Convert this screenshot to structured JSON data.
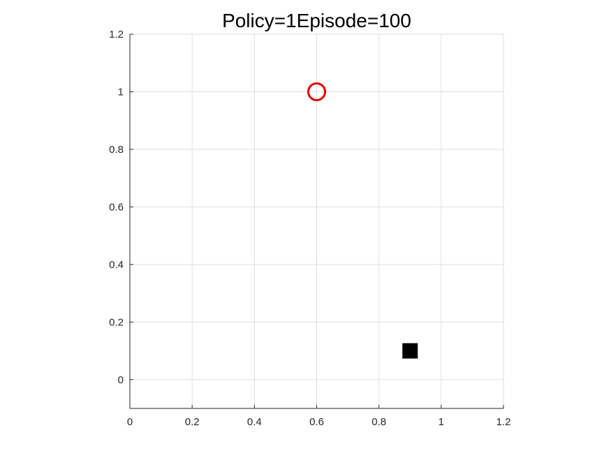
{
  "chart_data": {
    "type": "scatter",
    "title": "Policy=1Episode=100",
    "xlabel": "",
    "ylabel": "",
    "xlim": [
      0,
      1.2
    ],
    "ylim": [
      -0.1,
      1.2
    ],
    "x_ticks": [
      0,
      0.2,
      0.4,
      0.6,
      0.8,
      1,
      1.2
    ],
    "x_tick_labels": [
      "0",
      "0.2",
      "0.4",
      "0.6",
      "0.8",
      "1",
      "1.2"
    ],
    "y_ticks": [
      0,
      0.2,
      0.4,
      0.6,
      0.8,
      1,
      1.2
    ],
    "y_tick_labels": [
      "0",
      "0.2",
      "0.4",
      "0.6",
      "0.8",
      "1",
      "1.2"
    ],
    "grid": true,
    "series": [
      {
        "marker": "circle-open",
        "color": "#e60000",
        "points": [
          {
            "x": 0.6,
            "y": 1.0
          }
        ]
      },
      {
        "marker": "square-filled",
        "color": "#000000",
        "points": [
          {
            "x": 0.9,
            "y": 0.1
          }
        ]
      }
    ]
  }
}
